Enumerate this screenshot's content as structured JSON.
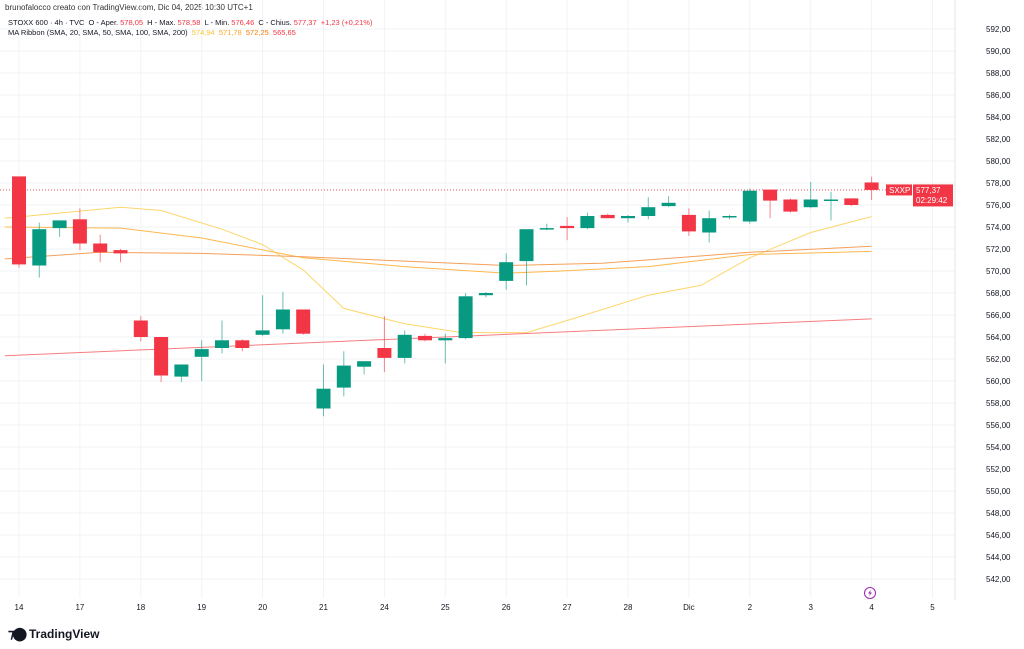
{
  "header": {
    "credit": "brunofalocco creato con TradingView.com, Dic 04, 2025 10:30 UTC+1"
  },
  "legend": {
    "symbol": "STOXX 600 · 4h · TVC",
    "open_label": "O - Aper.",
    "open": "578,05",
    "high_label": "H - Max.",
    "high": "578,58",
    "low_label": "L - Min.",
    "low": "576,46",
    "close_label": "C - Chius.",
    "close": "577,37",
    "change": "+1,23 (+0,21%)",
    "ma_label": "MA Ribbon (SMA, 20, SMA, 50, SMA, 100, SMA, 200)",
    "ma_values": [
      "574,94",
      "571,78",
      "572,25",
      "565,65"
    ]
  },
  "price_tag": {
    "ticker": "SXXP",
    "price": "577,37",
    "countdown": "02:29:42"
  },
  "logo": {
    "text": "TradingView"
  },
  "colors": {
    "up": "#089981",
    "down": "#f23645",
    "ma20": "#fdd66a",
    "ma50": "#ffb74d",
    "ma100": "#f5a05a",
    "ma200": "#f77c80"
  },
  "chart_data": {
    "type": "candlestick",
    "title": "STOXX 600 · 4h · TVC",
    "ylim": [
      541,
      593
    ],
    "yticks": [
      "592,00",
      "590,00",
      "588,00",
      "586,00",
      "584,00",
      "582,00",
      "580,00",
      "578,00",
      "576,00",
      "574,00",
      "572,00",
      "570,00",
      "568,00",
      "566,00",
      "564,00",
      "562,00",
      "560,00",
      "558,00",
      "556,00",
      "554,00",
      "552,00",
      "550,00",
      "548,00",
      "546,00",
      "544,00",
      "542,00"
    ],
    "xticks": [
      {
        "i": 0,
        "label": "14"
      },
      {
        "i": 3,
        "label": "17"
      },
      {
        "i": 6,
        "label": "18"
      },
      {
        "i": 9,
        "label": "19"
      },
      {
        "i": 12,
        "label": "20"
      },
      {
        "i": 15,
        "label": "21"
      },
      {
        "i": 18,
        "label": "24"
      },
      {
        "i": 21,
        "label": "25"
      },
      {
        "i": 24,
        "label": "26"
      },
      {
        "i": 27,
        "label": "27"
      },
      {
        "i": 30,
        "label": "28"
      },
      {
        "i": 33,
        "label": "Dic"
      },
      {
        "i": 36,
        "label": "2"
      },
      {
        "i": 39,
        "label": "3"
      },
      {
        "i": 42,
        "label": "4"
      },
      {
        "i": 45,
        "label": "5"
      }
    ],
    "ohlc": [
      [
        578.6,
        578.6,
        570.3,
        570.6
      ],
      [
        570.5,
        574.4,
        569.4,
        573.8
      ],
      [
        573.9,
        574.6,
        573.1,
        574.6
      ],
      [
        574.7,
        575.7,
        571.9,
        572.5
      ],
      [
        572.5,
        573.3,
        570.8,
        571.7
      ],
      [
        571.9,
        572.0,
        570.8,
        571.6
      ],
      [
        565.5,
        565.9,
        563.6,
        564.0
      ],
      [
        564.0,
        564.0,
        559.9,
        560.5
      ],
      [
        560.4,
        561.5,
        559.9,
        561.5
      ],
      [
        562.2,
        563.7,
        560.0,
        562.9
      ],
      [
        563.0,
        565.5,
        562.5,
        563.7
      ],
      [
        563.7,
        563.8,
        562.7,
        563.0
      ],
      [
        564.2,
        567.8,
        564.1,
        564.6
      ],
      [
        564.7,
        568.1,
        564.3,
        566.5
      ],
      [
        566.5,
        566.5,
        564.2,
        564.3
      ],
      [
        557.5,
        561.5,
        556.8,
        559.3
      ],
      [
        559.4,
        562.7,
        558.6,
        561.4
      ],
      [
        561.3,
        561.8,
        560.6,
        561.8
      ],
      [
        563.0,
        565.9,
        560.8,
        562.1
      ],
      [
        562.1,
        564.6,
        561.6,
        564.2
      ],
      [
        564.1,
        564.3,
        563.6,
        563.7
      ],
      [
        563.7,
        564.3,
        561.6,
        563.9
      ],
      [
        563.9,
        568.0,
        563.8,
        567.7
      ],
      [
        567.8,
        568.1,
        567.6,
        568.0
      ],
      [
        569.1,
        571.6,
        568.3,
        570.8
      ],
      [
        570.9,
        573.8,
        568.7,
        573.8
      ],
      [
        573.8,
        574.3,
        573.7,
        573.9
      ],
      [
        574.1,
        574.9,
        572.8,
        573.9
      ],
      [
        573.9,
        575.3,
        573.8,
        575.0
      ],
      [
        575.1,
        575.2,
        574.8,
        574.8
      ],
      [
        574.8,
        575.1,
        574.4,
        575.0
      ],
      [
        575.0,
        576.7,
        574.7,
        575.8
      ],
      [
        575.9,
        576.8,
        575.8,
        576.2
      ],
      [
        575.1,
        575.7,
        573.2,
        573.6
      ],
      [
        573.5,
        575.5,
        572.6,
        574.8
      ],
      [
        574.9,
        575.1,
        574.7,
        575.0
      ],
      [
        574.5,
        577.5,
        574.3,
        577.3
      ],
      [
        577.4,
        577.4,
        574.8,
        576.4
      ],
      [
        576.5,
        576.6,
        575.3,
        575.4
      ],
      [
        575.8,
        578.1,
        575.7,
        576.5
      ],
      [
        576.5,
        577.2,
        574.6,
        576.5
      ],
      [
        576.6,
        576.6,
        575.9,
        576.0
      ],
      [
        578.05,
        578.58,
        576.46,
        577.37
      ]
    ],
    "series": [
      {
        "name": "SMA 20",
        "color_key": "ma20",
        "points": [
          [
            -0.7,
            574.8
          ],
          [
            5,
            575.8
          ],
          [
            7,
            575.5
          ],
          [
            10,
            573.8
          ],
          [
            12,
            572.4
          ],
          [
            14,
            570.1
          ],
          [
            16,
            566.6
          ],
          [
            19,
            565.2
          ],
          [
            21.8,
            564.4
          ],
          [
            25,
            564.4
          ],
          [
            27,
            565.5
          ],
          [
            31,
            567.8
          ],
          [
            33.6,
            568.7
          ],
          [
            36,
            571.2
          ],
          [
            39,
            573.5
          ],
          [
            42,
            574.94
          ]
        ]
      },
      {
        "name": "SMA 50",
        "color_key": "ma50",
        "points": [
          [
            -0.7,
            574.0
          ],
          [
            5,
            573.9
          ],
          [
            9,
            573.0
          ],
          [
            14,
            571.2
          ],
          [
            19,
            570.4
          ],
          [
            24,
            569.8
          ],
          [
            26.7,
            570.0
          ],
          [
            31,
            570.4
          ],
          [
            36,
            571.5
          ],
          [
            42,
            571.78
          ]
        ]
      },
      {
        "name": "SMA 100",
        "color_key": "ma100",
        "points": [
          [
            -0.7,
            571.1
          ],
          [
            4,
            571.7
          ],
          [
            9,
            571.6
          ],
          [
            14,
            571.3
          ],
          [
            19,
            570.9
          ],
          [
            24,
            570.5
          ],
          [
            28.7,
            570.7
          ],
          [
            36,
            571.7
          ],
          [
            42,
            572.25
          ]
        ]
      },
      {
        "name": "SMA 200",
        "color_key": "ma200",
        "points": [
          [
            -0.7,
            562.3
          ],
          [
            42,
            565.65
          ]
        ]
      }
    ],
    "last_price": 577.37
  }
}
